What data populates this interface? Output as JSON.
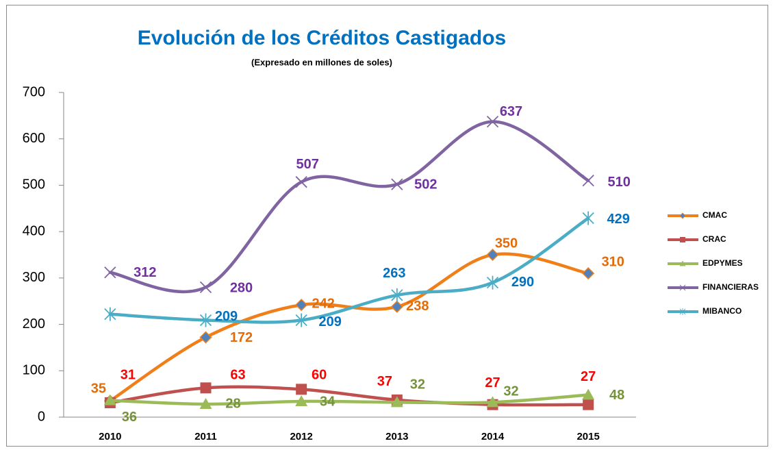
{
  "chart_data": {
    "type": "line",
    "title": "Evolución de los Créditos Castigados",
    "subtitle": "(Expresado en millones de soles)",
    "categories": [
      "2010",
      "2011",
      "2012",
      "2013",
      "2014",
      "2015"
    ],
    "ylim": [
      0,
      700
    ],
    "yticks": [
      0,
      100,
      200,
      300,
      400,
      500,
      600,
      700
    ],
    "grid": false,
    "smooth": true,
    "legend": "right",
    "series": [
      {
        "name": "CMAC",
        "color": "#f07f1a",
        "marker": "diamond",
        "marker_color": "#4f81bd",
        "label_color": "#e36c09",
        "values": [
          35,
          172,
          242,
          238,
          350,
          310
        ]
      },
      {
        "name": "CRAC",
        "color": "#c0504d",
        "marker": "square",
        "marker_color": "#c0504d",
        "label_color": "#ff0000",
        "values": [
          31,
          63,
          60,
          37,
          27,
          27
        ]
      },
      {
        "name": "EDPYMES",
        "color": "#9bbb59",
        "marker": "triangle",
        "marker_color": "#9bbb59",
        "label_color": "#76923c",
        "values": [
          36,
          28,
          34,
          32,
          32,
          48
        ]
      },
      {
        "name": "FINANCIERAS",
        "color": "#8064a2",
        "marker": "x",
        "marker_color": "#8064a2",
        "label_color": "#7030a0",
        "values": [
          312,
          280,
          507,
          502,
          637,
          510
        ]
      },
      {
        "name": "MIBANCO",
        "color": "#4bacc6",
        "marker": "star",
        "marker_color": "#4bacc6",
        "label_color": "#0070c0",
        "values": [
          222,
          209,
          209,
          263,
          290,
          429
        ],
        "value_labels": [
          null,
          "209",
          "209",
          "263",
          "290",
          "429"
        ]
      }
    ]
  }
}
